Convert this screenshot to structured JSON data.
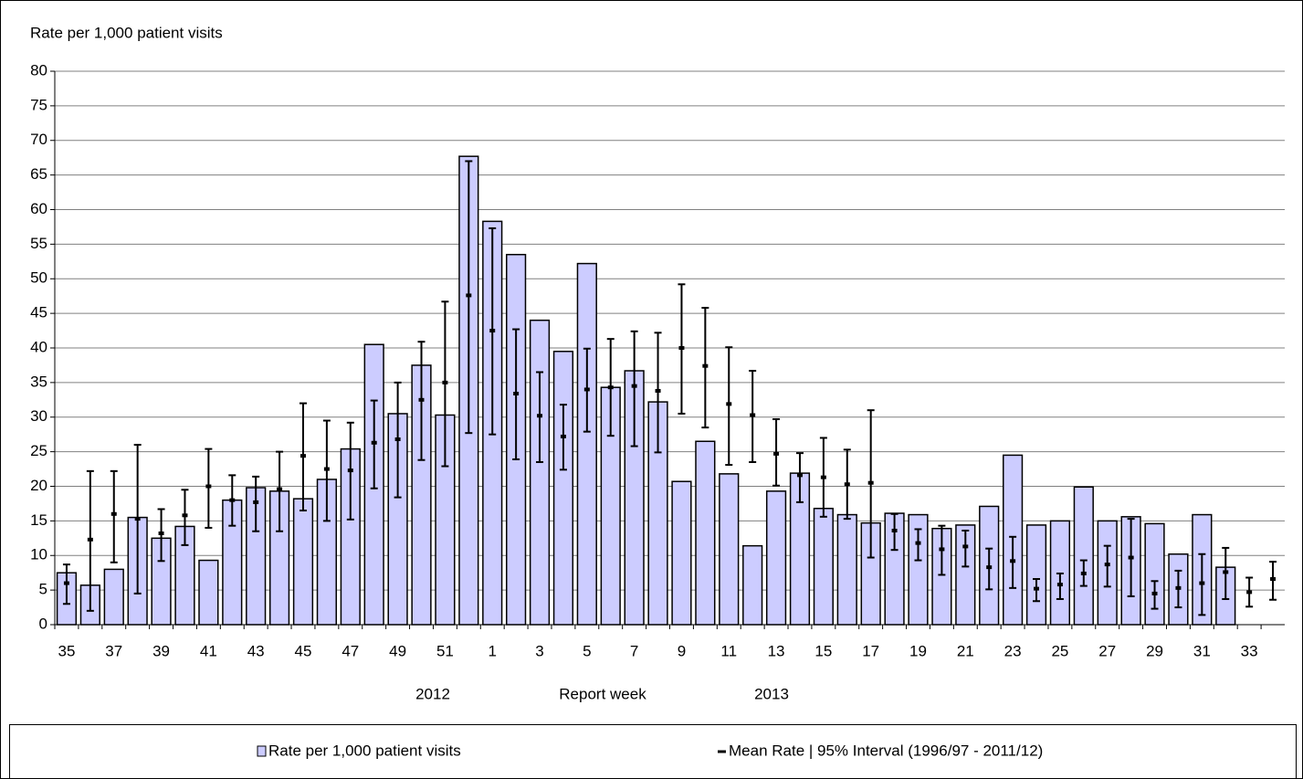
{
  "chart_data": {
    "type": "bar_errorbar",
    "y_label": "Rate per 1,000  patient visits",
    "x_label": "Report week",
    "year_labels": [
      "2012",
      "2013"
    ],
    "categories": [
      "35",
      null,
      "37",
      null,
      "39",
      null,
      "41",
      null,
      "43",
      null,
      "45",
      null,
      "47",
      null,
      "49",
      null,
      "51",
      null,
      "1",
      null,
      "3",
      null,
      "5",
      null,
      "7",
      null,
      "9",
      null,
      "11",
      null,
      "13",
      null,
      "15",
      null,
      "17",
      null,
      "19",
      null,
      "21",
      null,
      "23",
      null,
      "25",
      null,
      "27",
      null,
      "29",
      null,
      "31",
      null,
      "33",
      null
    ],
    "series": [
      {
        "name": "Rate per 1,000 patient visits",
        "color": "#ccccff",
        "values": [
          7.5,
          5.7,
          8,
          15.5,
          12.5,
          14.2,
          9.3,
          18,
          19.8,
          19.3,
          18.2,
          21,
          25.4,
          40.5,
          30.5,
          37.5,
          30.3,
          67.7,
          58.3,
          53.5,
          44,
          39.5,
          52.2,
          34.3,
          36.7,
          32.2,
          20.7,
          26.5,
          21.8,
          11.4,
          19.3,
          21.9,
          16.8,
          15.9,
          14.7,
          16.1,
          15.9,
          13.9,
          14.4,
          17.1,
          24.5,
          14.4,
          15,
          19.9,
          15,
          15.6,
          14.6,
          10.2,
          15.9,
          8.3,
          null,
          null
        ]
      },
      {
        "name": "Mean Rate | 95% Interval (1996/97 - 2011/12)",
        "color": "#000000",
        "values": [
          6,
          12.3,
          16,
          15.3,
          13.2,
          15.8,
          20,
          18,
          17.7,
          19.6,
          24.4,
          22.5,
          22.3,
          26.3,
          26.8,
          32.5,
          35,
          47.6,
          42.5,
          33.4,
          30.2,
          27.2,
          34,
          34.3,
          34.5,
          33.8,
          40,
          37.4,
          31.9,
          30.3,
          24.7,
          21.6,
          21.3,
          20.3,
          20.5,
          13.6,
          11.8,
          10.9,
          11.3,
          8.3,
          9.2,
          5.2,
          5.8,
          7.4,
          8.7,
          9.7,
          4.5,
          5.3,
          6,
          7.6,
          4.7,
          6.6
        ],
        "lower": [
          3,
          2,
          9,
          4.5,
          9.2,
          11.5,
          14,
          14.3,
          13.5,
          13.5,
          16.5,
          15,
          15.2,
          19.7,
          18.4,
          23.8,
          22.9,
          27.7,
          27.5,
          23.9,
          23.5,
          22.4,
          27.9,
          27.3,
          25.8,
          24.9,
          30.5,
          28.5,
          23.1,
          23.5,
          20.1,
          17.7,
          15.6,
          15.3,
          9.7,
          10.8,
          9.3,
          7.2,
          8.4,
          5.1,
          5.3,
          3.4,
          3.7,
          5.6,
          5.5,
          4.1,
          2.3,
          2.5,
          1.4,
          3.7,
          2.6,
          3.6
        ],
        "upper": [
          8.7,
          22.2,
          22.2,
          26,
          16.7,
          19.5,
          25.4,
          21.6,
          21.4,
          25,
          32,
          29.5,
          29.2,
          32.4,
          35,
          40.9,
          46.7,
          67,
          57.3,
          42.7,
          36.5,
          31.8,
          39.9,
          41.3,
          42.4,
          42.2,
          49.2,
          45.8,
          40.1,
          36.7,
          29.7,
          24.8,
          27,
          25.3,
          31,
          16,
          13.8,
          14.3,
          13.6,
          11,
          12.7,
          6.6,
          7.4,
          9.3,
          11.4,
          15.3,
          6.3,
          7.8,
          10.2,
          11.1,
          6.8,
          9.1
        ]
      }
    ],
    "ylim": [
      0,
      80
    ],
    "yticks": [
      0,
      5,
      10,
      15,
      20,
      25,
      30,
      35,
      40,
      45,
      50,
      55,
      60,
      65,
      70,
      75,
      80
    ],
    "grid": true
  }
}
